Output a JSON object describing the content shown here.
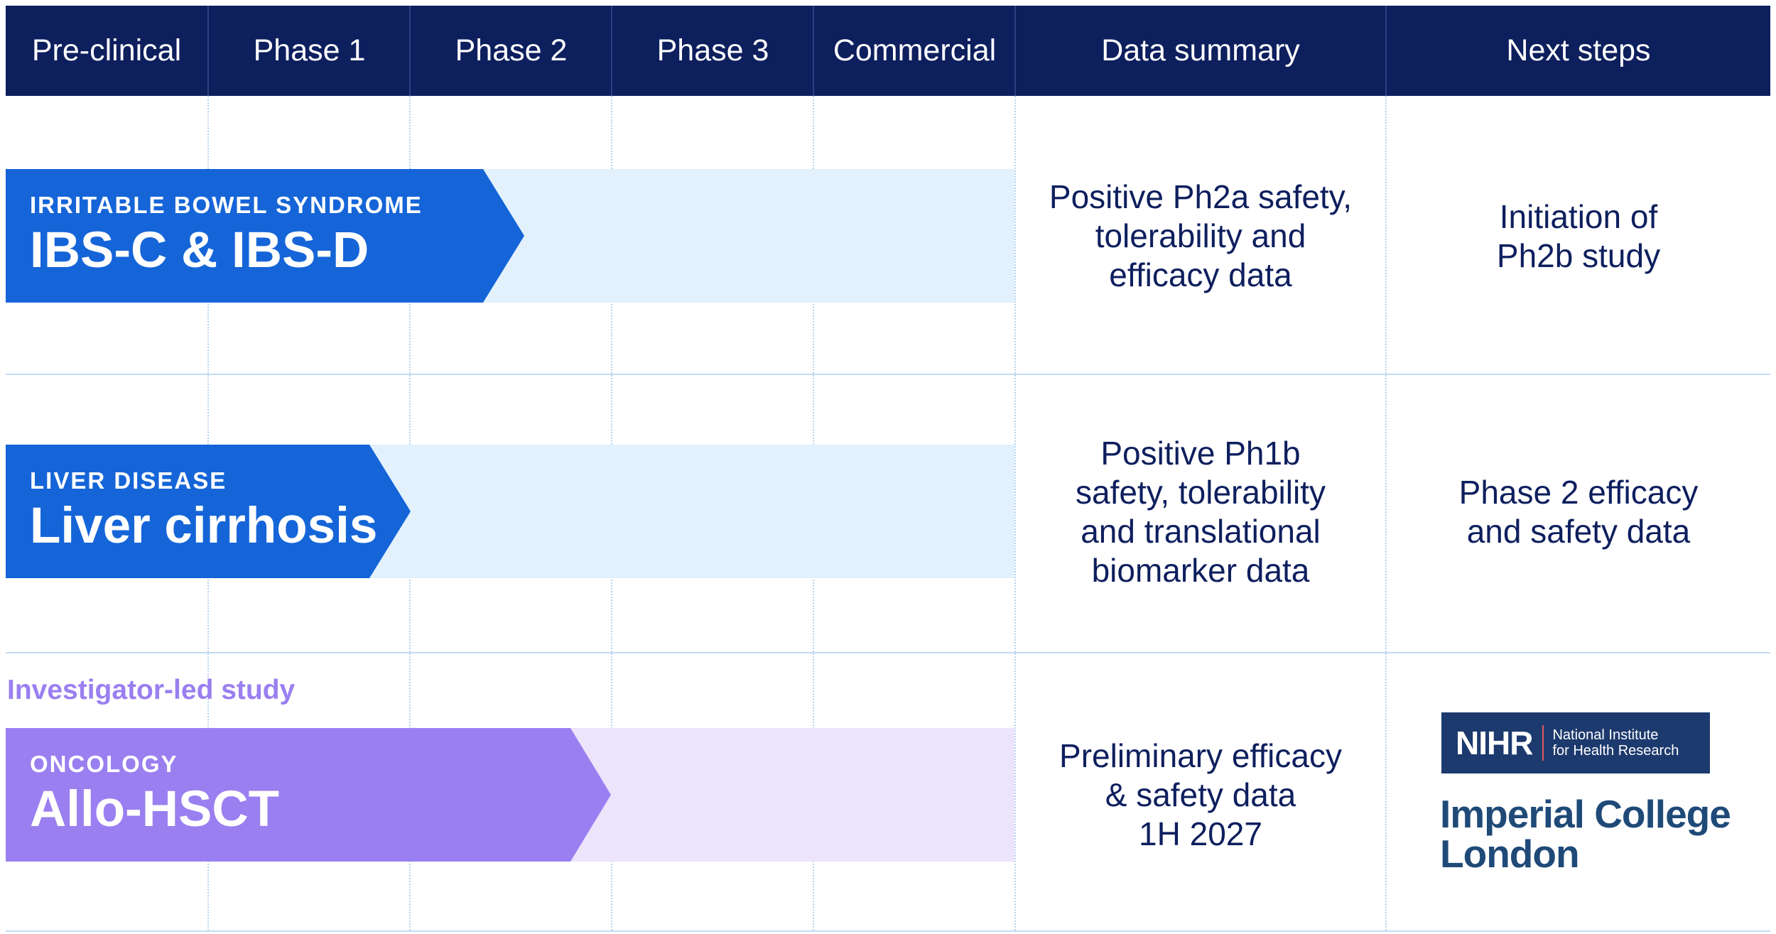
{
  "header": {
    "columns": [
      "Pre-clinical",
      "Phase 1",
      "Phase 2",
      "Phase 3",
      "Commercial",
      "Data summary",
      "Next steps"
    ]
  },
  "colors": {
    "header_bg": "#0e1f5e",
    "blue_arrow": "#1565d8",
    "blue_track": "#e2f1fc",
    "purple_arrow": "#9a7ff0",
    "purple_track": "#ebe4fb",
    "text_navy": "#0e1f5e"
  },
  "rows": [
    {
      "category": "IRRITABLE BOWEL SYNDROME",
      "program": "IBS-C & IBS-D",
      "current_phase": "Phase 2",
      "data_summary": "Positive Ph2a safety,\ntolerability and\nefficacy data",
      "next_steps": "Initiation of\nPh2b study"
    },
    {
      "category": "LIVER DISEASE",
      "program": "Liver cirrhosis",
      "current_phase": "Phase 1",
      "data_summary": "Positive Ph1b\nsafety, tolerability\nand translational\nbiomarker data",
      "next_steps": "Phase 2 efficacy\nand safety data"
    },
    {
      "note": "Investigator-led study",
      "category": "ONCOLOGY",
      "program": "Allo-HSCT",
      "current_phase": "Phase 2",
      "data_summary": "Preliminary efficacy\n& safety data\n1H 2027",
      "partners": {
        "nihr_main": "NIHR",
        "nihr_sub": "National Institute\nfor Health Research",
        "imperial": "Imperial College\nLondon"
      }
    }
  ]
}
